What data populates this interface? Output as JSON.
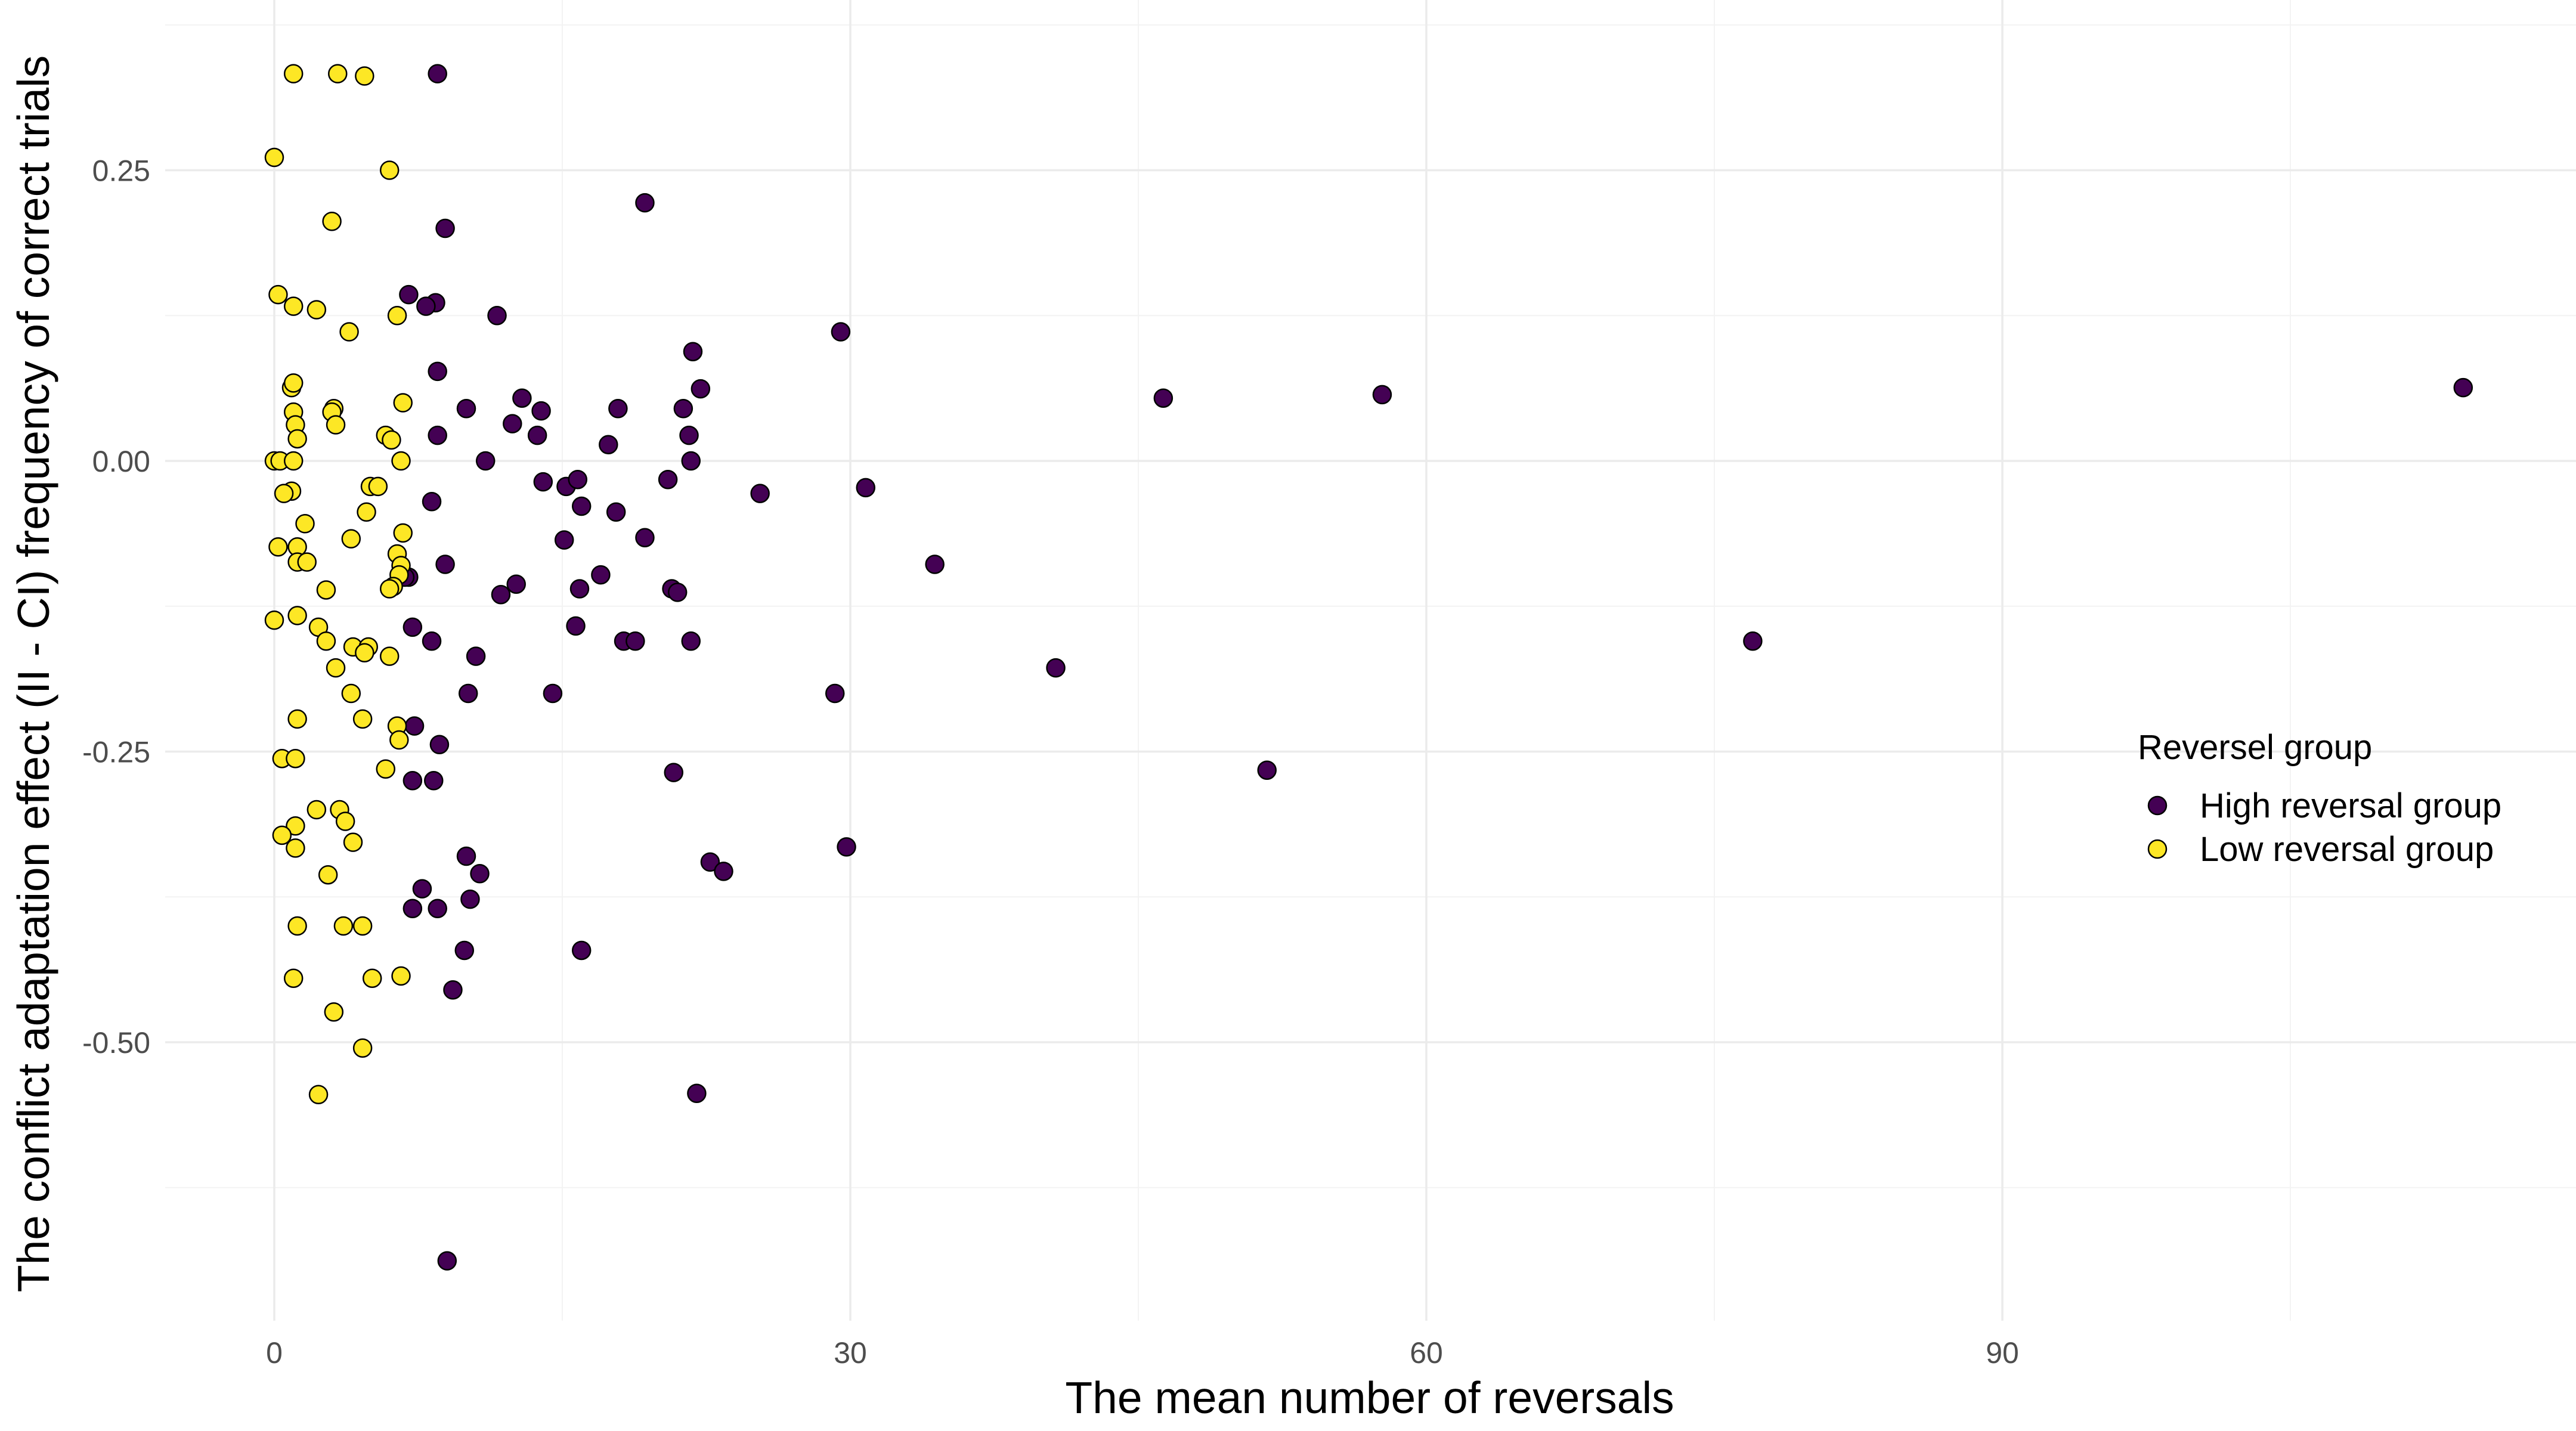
{
  "chart_data": {
    "type": "scatter",
    "title": "",
    "xlabel": "The mean number of reversals",
    "ylabel": "The conflict adaptation effect (II - CI) frequency of correct trials",
    "xlim": [
      -9,
      115
    ],
    "ylim": [
      -0.745,
      0.383
    ],
    "x_ticks": [
      0,
      30,
      60,
      90
    ],
    "x_tick_labels": [
      "0",
      "30",
      "60",
      "90"
    ],
    "y_ticks": [
      -0.5,
      -0.25,
      0,
      0.25
    ],
    "y_tick_labels": [
      "-0.50",
      "-0.25",
      "0.00",
      "0.25"
    ],
    "grid": true,
    "legend": {
      "title": "Reversel group",
      "position": "right"
    },
    "series": [
      {
        "name": "High reversal group",
        "color": "#440154",
        "points": [
          [
            8.5,
            0.333
          ],
          [
            19.3,
            0.222
          ],
          [
            8.9,
            0.2
          ],
          [
            29.5,
            0.111
          ],
          [
            11.6,
            0.125
          ],
          [
            7,
            0.143
          ],
          [
            8.4,
            0.136
          ],
          [
            7.9,
            0.133
          ],
          [
            21.8,
            0.094
          ],
          [
            8.5,
            0.077
          ],
          [
            46.3,
            0.054
          ],
          [
            57.7,
            0.057
          ],
          [
            114,
            0.063
          ],
          [
            22.2,
            0.062
          ],
          [
            12.9,
            0.054
          ],
          [
            10,
            0.045
          ],
          [
            13.9,
            0.043
          ],
          [
            17.9,
            0.045
          ],
          [
            21.3,
            0.045
          ],
          [
            12.4,
            0.032
          ],
          [
            8.5,
            0.022
          ],
          [
            13.7,
            0.022
          ],
          [
            21.6,
            0.022
          ],
          [
            17.4,
            0.014
          ],
          [
            11,
            0
          ],
          [
            21.7,
            0
          ],
          [
            20.5,
            -0.016
          ],
          [
            14,
            -0.018
          ],
          [
            15.2,
            -0.022
          ],
          [
            15.8,
            -0.016
          ],
          [
            25.3,
            -0.028
          ],
          [
            30.8,
            -0.023
          ],
          [
            8.2,
            -0.035
          ],
          [
            16,
            -0.039
          ],
          [
            17.8,
            -0.044
          ],
          [
            15.1,
            -0.068
          ],
          [
            19.3,
            -0.066
          ],
          [
            8.9,
            -0.089
          ],
          [
            34.4,
            -0.089
          ],
          [
            7,
            -0.1
          ],
          [
            6.8,
            -0.1
          ],
          [
            17,
            -0.098
          ],
          [
            12.6,
            -0.106
          ],
          [
            15.9,
            -0.11
          ],
          [
            20.7,
            -0.11
          ],
          [
            21,
            -0.113
          ],
          [
            11.8,
            -0.115
          ],
          [
            7.2,
            -0.143
          ],
          [
            15.7,
            -0.142
          ],
          [
            8.2,
            -0.155
          ],
          [
            18.2,
            -0.155
          ],
          [
            18.8,
            -0.155
          ],
          [
            21.7,
            -0.155
          ],
          [
            77,
            -0.155
          ],
          [
            10.5,
            -0.168
          ],
          [
            40.7,
            -0.178
          ],
          [
            10.1,
            -0.2
          ],
          [
            14.5,
            -0.2
          ],
          [
            29.2,
            -0.2
          ],
          [
            7.3,
            -0.228
          ],
          [
            8.6,
            -0.244
          ],
          [
            51.7,
            -0.266
          ],
          [
            20.8,
            -0.268
          ],
          [
            7.2,
            -0.275
          ],
          [
            8.3,
            -0.275
          ],
          [
            10,
            -0.34
          ],
          [
            29.8,
            -0.332
          ],
          [
            22.7,
            -0.345
          ],
          [
            23.4,
            -0.353
          ],
          [
            10.7,
            -0.355
          ],
          [
            7.7,
            -0.368
          ],
          [
            10.2,
            -0.377
          ],
          [
            7.2,
            -0.385
          ],
          [
            8.5,
            -0.385
          ],
          [
            16,
            -0.421
          ],
          [
            9.9,
            -0.421
          ],
          [
            9.3,
            -0.455
          ],
          [
            22,
            -0.544
          ],
          [
            9,
            -0.688
          ]
        ]
      },
      {
        "name": "Low reversal group",
        "color": "#fde725",
        "points": [
          [
            1,
            0.333
          ],
          [
            3.3,
            0.333
          ],
          [
            4.7,
            0.331
          ],
          [
            0,
            0.261
          ],
          [
            6,
            0.25
          ],
          [
            3,
            0.206
          ],
          [
            0.2,
            0.143
          ],
          [
            1,
            0.133
          ],
          [
            2.2,
            0.13
          ],
          [
            6.4,
            0.125
          ],
          [
            3.9,
            0.111
          ],
          [
            0.9,
            0.063
          ],
          [
            1,
            0.067
          ],
          [
            6.7,
            0.05
          ],
          [
            3.1,
            0.045
          ],
          [
            3,
            0.042
          ],
          [
            1,
            0.042
          ],
          [
            3.2,
            0.031
          ],
          [
            1.1,
            0.031
          ],
          [
            5.8,
            0.022
          ],
          [
            6.1,
            0.018
          ],
          [
            1.2,
            0.019
          ],
          [
            0,
            0
          ],
          [
            0.3,
            0
          ],
          [
            1,
            0
          ],
          [
            6.6,
            0
          ],
          [
            5,
            -0.022
          ],
          [
            5.4,
            -0.022
          ],
          [
            0.9,
            -0.026
          ],
          [
            0.5,
            -0.028
          ],
          [
            4.8,
            -0.044
          ],
          [
            1.6,
            -0.054
          ],
          [
            6.7,
            -0.062
          ],
          [
            4,
            -0.067
          ],
          [
            0.2,
            -0.074
          ],
          [
            1.2,
            -0.074
          ],
          [
            6.4,
            -0.08
          ],
          [
            1.2,
            -0.087
          ],
          [
            1.7,
            -0.087
          ],
          [
            6.6,
            -0.09
          ],
          [
            6.5,
            -0.098
          ],
          [
            6.2,
            -0.108
          ],
          [
            6,
            -0.11
          ],
          [
            2.7,
            -0.111
          ],
          [
            1.2,
            -0.133
          ],
          [
            0,
            -0.137
          ],
          [
            2.3,
            -0.143
          ],
          [
            2.7,
            -0.155
          ],
          [
            4.1,
            -0.16
          ],
          [
            4.9,
            -0.16
          ],
          [
            4.7,
            -0.165
          ],
          [
            6,
            -0.168
          ],
          [
            3.2,
            -0.178
          ],
          [
            4,
            -0.2
          ],
          [
            1.2,
            -0.222
          ],
          [
            4.6,
            -0.222
          ],
          [
            6.4,
            -0.228
          ],
          [
            6.5,
            -0.24
          ],
          [
            0.4,
            -0.256
          ],
          [
            1.1,
            -0.256
          ],
          [
            5.8,
            -0.265
          ],
          [
            2.2,
            -0.3
          ],
          [
            3.4,
            -0.3
          ],
          [
            3.7,
            -0.31
          ],
          [
            1.1,
            -0.314
          ],
          [
            0.4,
            -0.322
          ],
          [
            4.1,
            -0.328
          ],
          [
            1.1,
            -0.333
          ],
          [
            2.8,
            -0.356
          ],
          [
            1.2,
            -0.4
          ],
          [
            3.6,
            -0.4
          ],
          [
            4.6,
            -0.4
          ],
          [
            1,
            -0.445
          ],
          [
            5.1,
            -0.445
          ],
          [
            6.6,
            -0.443
          ],
          [
            3.1,
            -0.474
          ],
          [
            4.6,
            -0.505
          ],
          [
            2.3,
            -0.545
          ]
        ]
      }
    ]
  }
}
